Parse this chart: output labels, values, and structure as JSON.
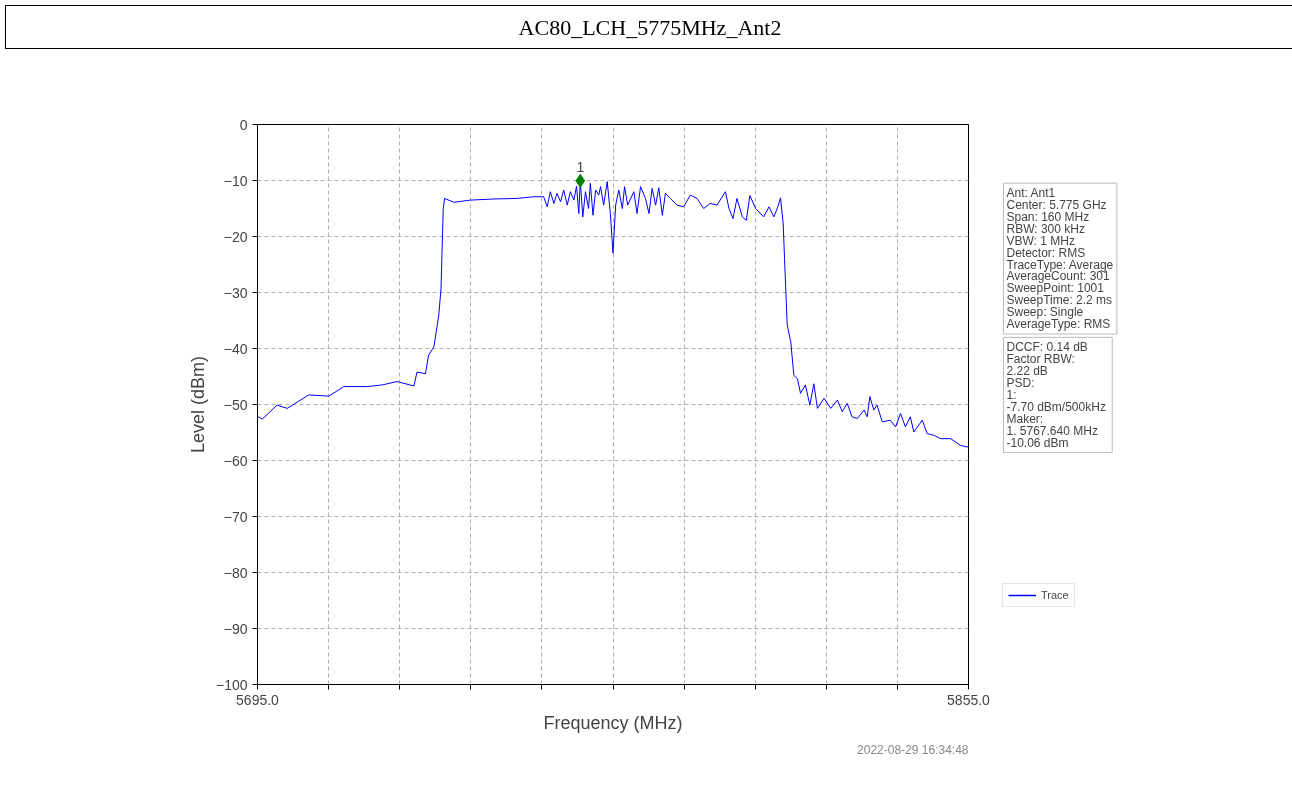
{
  "chart_data": {
    "type": "line",
    "title": "AC80_LCH_5775MHz_Ant2",
    "xlabel": "Frequency (MHz)",
    "ylabel": "Level (dBm)",
    "xlim": [
      5695,
      5855
    ],
    "xticks": [
      {
        "value": 5695,
        "label": "5695.0"
      },
      {
        "value": 5711,
        "label": null
      },
      {
        "value": 5727,
        "label": null
      },
      {
        "value": 5743,
        "label": null
      },
      {
        "value": 5759,
        "label": null
      },
      {
        "value": 5775,
        "label": null
      },
      {
        "value": 5791,
        "label": null
      },
      {
        "value": 5807,
        "label": null
      },
      {
        "value": 5823,
        "label": null
      },
      {
        "value": 5839,
        "label": null
      },
      {
        "value": 5855,
        "label": "5855.0"
      }
    ],
    "ylim": [
      -100,
      0
    ],
    "yticks": [
      -100,
      -90,
      -80,
      -70,
      -60,
      -50,
      -40,
      -30,
      -20,
      -10,
      0
    ],
    "grid": true,
    "legend": "bottom right",
    "series": [
      {
        "name": "Trace",
        "color": "#0000ff",
        "marker": "none",
        "line_style": "solid",
        "x": [
          5695,
          5696.1,
          5699.4,
          5701.7,
          5706.5,
          5711.1,
          5714.4,
          5719.7,
          5723.1,
          5726.4,
          5730.2,
          5730.9,
          5732.8,
          5733.5,
          5734.7,
          5735.8,
          5736.3,
          5736.8,
          5737.1,
          5739.2,
          5742.9,
          5748.2,
          5753.4,
          5757.2,
          5759.4,
          5760.2,
          5760.9,
          5761.7,
          5762.4,
          5763.2,
          5763.9,
          5764.7,
          5765.4,
          5766.2,
          5766.8,
          5767.3,
          5767.64,
          5768.2,
          5768.8,
          5769.5,
          5769.9,
          5770.5,
          5771.1,
          5771.8,
          5772.2,
          5772.9,
          5773.7,
          5774.4,
          5775.0,
          5775.6,
          5776.3,
          5777.1,
          5777.6,
          5778.3,
          5779.7,
          5780.4,
          5781.2,
          5782.3,
          5783.1,
          5783.8,
          5784.6,
          5785.3,
          5786.1,
          5786.8,
          5787.9,
          5789.4,
          5790.9,
          5792.4,
          5793.9,
          5795.4,
          5796.9,
          5798.4,
          5800.3,
          5801.1,
          5802.0,
          5802.9,
          5804.1,
          5805.0,
          5805.8,
          5807.1,
          5808.9,
          5810.1,
          5811.2,
          5812.1,
          5812.7,
          5813.3,
          5813.6,
          5814.2,
          5815.0,
          5815.7,
          5816.5,
          5817.2,
          5818.3,
          5819.3,
          5820.2,
          5821.0,
          5822.5,
          5824.0,
          5825.5,
          5826.6,
          5827.7,
          5828.8,
          5830.0,
          5831.5,
          5832.2,
          5832.8,
          5833.7,
          5834.4,
          5835.6,
          5837.4,
          5838.6,
          5839.7,
          5840.8,
          5841.9,
          5842.7,
          5844.6,
          5845.7,
          5847.2,
          5848.7,
          5851.0,
          5852.1,
          5853.2,
          5854.7,
          5855
        ],
        "values": [
          -52.1,
          -52.6,
          -50.1,
          -50.7,
          -48.3,
          -48.5,
          -46.8,
          -46.8,
          -46.5,
          -45.9,
          -46.7,
          -44.2,
          -44.5,
          -41.2,
          -39.7,
          -34.0,
          -29.3,
          -15.0,
          -13.2,
          -13.9,
          -13.5,
          -13.3,
          -13.2,
          -12.9,
          -12.9,
          -14.7,
          -12.0,
          -14.1,
          -12.3,
          -13.8,
          -11.7,
          -14.4,
          -12.0,
          -13.5,
          -11.0,
          -15.9,
          -10.06,
          -16.5,
          -12.0,
          -15.0,
          -10.5,
          -16.2,
          -11.7,
          -12.6,
          -11.1,
          -14.4,
          -10.2,
          -15.9,
          -23.0,
          -14.4,
          -11.7,
          -15.0,
          -11.1,
          -14.4,
          -12.0,
          -15.9,
          -11.1,
          -13.2,
          -15.9,
          -11.4,
          -14.4,
          -11.3,
          -16.2,
          -12.3,
          -13.2,
          -14.4,
          -14.7,
          -12.6,
          -13.2,
          -15.0,
          -14.1,
          -14.4,
          -12.0,
          -15.0,
          -16.8,
          -13.2,
          -16.5,
          -17.1,
          -12.7,
          -15.0,
          -16.5,
          -14.7,
          -16.5,
          -14.7,
          -13.1,
          -17.7,
          -23.9,
          -35.8,
          -38.8,
          -44.8,
          -45.4,
          -48.0,
          -46.5,
          -50.1,
          -46.3,
          -50.7,
          -48.9,
          -50.7,
          -49.2,
          -51.3,
          -49.8,
          -52.2,
          -52.5,
          -51.0,
          -52.2,
          -48.6,
          -51.0,
          -50.1,
          -53.1,
          -52.8,
          -54.0,
          -51.6,
          -54.0,
          -52.2,
          -54.9,
          -52.8,
          -55.2,
          -55.5,
          -56.1,
          -56.1,
          -56.7,
          -57.3,
          -57.6,
          -57.5
        ]
      },
      {
        "type": "scatter",
        "color": "#008000",
        "marker": "diamond",
        "x": [
          5767.64
        ],
        "values": [
          -10.06
        ]
      }
    ],
    "annotations": [
      "Ant: Ant1\nCenter: 5.775 GHz\nSpan: 160 MHz\nRBW: 300 kHz\nVBW: 1 MHz\nDetector: RMS\nTraceType: Average\nAverageCount: 301\nSweepPoint: 1001\nSweepTime: 2.2 ms\nSweep: Single\nAverageType: RMS",
      "DCCF: 0.14 dB\nFactor RBW:\n 2.22 dB\nPSD:\n1:\n -7.70 dBm/500kHz\nMaker:\n1. 5767.640 MHz\n    -10.06 dBm",
      "2022-08-29 16:34:48",
      {
        "text": "1",
        "x": 5767.64,
        "y": -10.06
      }
    ]
  }
}
